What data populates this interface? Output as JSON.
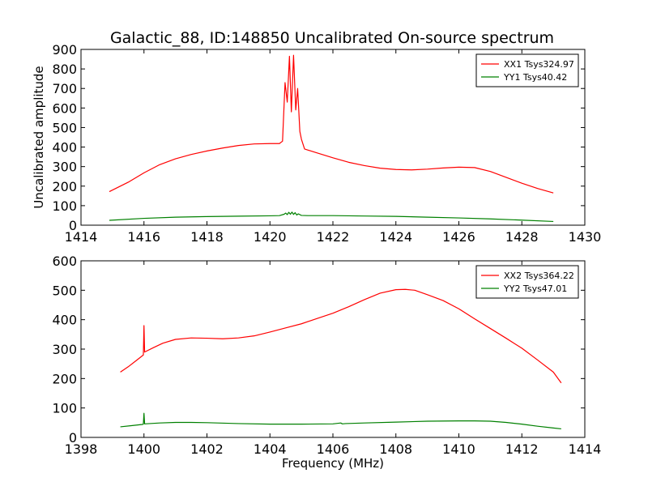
{
  "chart_data": [
    {
      "type": "line",
      "title": "Galactic_88, ID:148850 Uncalibrated On-source spectrum",
      "xlabel": "",
      "ylabel": "Uncalibrated amplitude",
      "xlim": [
        1414,
        1430
      ],
      "ylim": [
        0,
        900
      ],
      "xticks": [
        1414,
        1416,
        1418,
        1420,
        1422,
        1424,
        1426,
        1428,
        1430
      ],
      "yticks": [
        0,
        100,
        200,
        300,
        400,
        500,
        600,
        700,
        800,
        900
      ],
      "legend_position": "top-right",
      "series": [
        {
          "name": "XX1 Tsys324.97",
          "color": "#ff0000",
          "x": [
            1414.9,
            1415.5,
            1416.0,
            1416.5,
            1417.0,
            1417.5,
            1418.0,
            1418.5,
            1419.0,
            1419.5,
            1420.0,
            1420.3,
            1420.4,
            1420.48,
            1420.55,
            1420.62,
            1420.68,
            1420.75,
            1420.82,
            1420.88,
            1420.95,
            1421.0,
            1421.1,
            1421.5,
            1422.0,
            1422.5,
            1423.0,
            1423.5,
            1424.0,
            1424.5,
            1425.0,
            1425.5,
            1426.0,
            1426.5,
            1427.0,
            1427.5,
            1428.0,
            1428.5,
            1429.0
          ],
          "y": [
            172,
            220,
            268,
            310,
            340,
            362,
            380,
            395,
            408,
            416,
            418,
            418,
            430,
            730,
            630,
            865,
            580,
            870,
            590,
            700,
            480,
            440,
            390,
            370,
            345,
            322,
            305,
            292,
            285,
            283,
            287,
            293,
            297,
            295,
            275,
            245,
            215,
            188,
            165
          ]
        },
        {
          "name": "YY1 Tsys40.42",
          "color": "#008000",
          "x": [
            1414.9,
            1416.0,
            1417.0,
            1418.0,
            1419.0,
            1420.0,
            1420.3,
            1420.45,
            1420.5,
            1420.55,
            1420.6,
            1420.65,
            1420.7,
            1420.75,
            1420.8,
            1420.85,
            1420.9,
            1421.0,
            1421.2,
            1422.0,
            1423.0,
            1424.0,
            1425.0,
            1426.0,
            1427.0,
            1428.0,
            1429.0
          ],
          "y": [
            25,
            35,
            41,
            44,
            46,
            48,
            49,
            56,
            62,
            54,
            66,
            56,
            67,
            55,
            64,
            52,
            58,
            50,
            49,
            49,
            47,
            45,
            41,
            37,
            32,
            26,
            19
          ]
        }
      ]
    },
    {
      "type": "line",
      "title": "",
      "xlabel": "Frequency (MHz)",
      "ylabel": "",
      "xlim": [
        1398,
        1414
      ],
      "ylim": [
        0,
        600
      ],
      "xticks": [
        1398,
        1400,
        1402,
        1404,
        1406,
        1408,
        1410,
        1412,
        1414
      ],
      "yticks": [
        0,
        100,
        200,
        300,
        400,
        500,
        600
      ],
      "legend_position": "top-right",
      "series": [
        {
          "name": "XX2 Tsys364.22",
          "color": "#ff0000",
          "x": [
            1399.25,
            1399.5,
            1399.8,
            1399.98,
            1400.0,
            1400.02,
            1400.3,
            1400.6,
            1401.0,
            1401.5,
            1402.0,
            1402.5,
            1403.0,
            1403.5,
            1404.0,
            1404.5,
            1405.0,
            1405.5,
            1406.0,
            1406.5,
            1407.0,
            1407.5,
            1408.0,
            1408.3,
            1408.6,
            1409.0,
            1409.5,
            1410.0,
            1410.5,
            1411.0,
            1411.5,
            1412.0,
            1412.5,
            1413.0,
            1413.25
          ],
          "y": [
            222,
            240,
            265,
            280,
            380,
            290,
            305,
            320,
            333,
            338,
            337,
            335,
            338,
            345,
            358,
            372,
            386,
            404,
            422,
            444,
            468,
            490,
            502,
            503,
            500,
            485,
            465,
            437,
            403,
            370,
            337,
            303,
            263,
            222,
            185
          ]
        },
        {
          "name": "YY2 Tsys47.01",
          "color": "#008000",
          "x": [
            1399.25,
            1399.6,
            1399.95,
            1399.98,
            1400.0,
            1400.02,
            1400.5,
            1401.0,
            1401.5,
            1402.0,
            1403.0,
            1404.0,
            1405.0,
            1406.0,
            1406.25,
            1406.3,
            1406.4,
            1407.0,
            1408.0,
            1409.0,
            1410.0,
            1410.5,
            1411.0,
            1411.5,
            1412.0,
            1412.5,
            1413.0,
            1413.25
          ],
          "y": [
            36,
            40,
            44,
            45,
            82,
            46,
            49,
            51,
            51,
            50,
            47,
            45,
            45,
            46,
            49,
            46,
            47,
            49,
            52,
            55,
            56,
            56,
            55,
            51,
            45,
            38,
            32,
            29
          ]
        }
      ]
    }
  ]
}
